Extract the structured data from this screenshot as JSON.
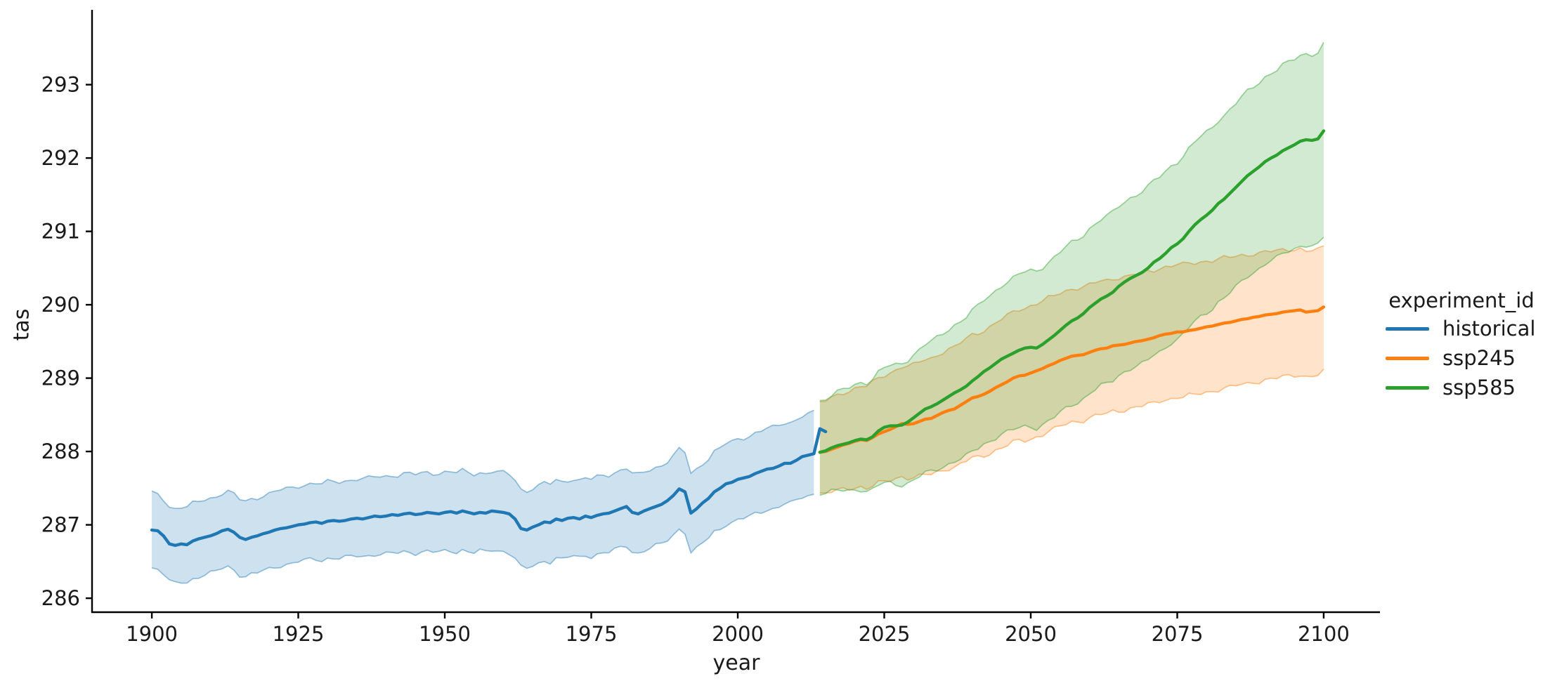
{
  "figure": {
    "background": "#ffffff",
    "text_color": "#1a1a1a"
  },
  "chart_data": {
    "type": "line",
    "title": "",
    "xlabel": "year",
    "ylabel": "tas",
    "grid": false,
    "xlim": [
      1889.8,
      2109.6
    ],
    "ylim": [
      285.81,
      294.02
    ],
    "x_ticks": [
      1900,
      1925,
      1950,
      1975,
      2000,
      2025,
      2050,
      2075,
      2100
    ],
    "y_ticks": [
      286,
      287,
      288,
      289,
      290,
      291,
      292,
      293
    ],
    "legend": {
      "title": "experiment_id",
      "position": "right",
      "items": [
        {
          "label": "historical",
          "color": "#1f77b4"
        },
        {
          "label": "ssp245",
          "color": "#ff7f0e"
        },
        {
          "label": "ssp585",
          "color": "#2ca02c"
        }
      ]
    },
    "series": [
      {
        "name": "historical",
        "color": "#1f77b4",
        "x_start": 1900,
        "x_step": 1,
        "values": [
          286.93,
          286.92,
          286.85,
          286.74,
          286.72,
          286.74,
          286.73,
          286.78,
          286.81,
          286.83,
          286.85,
          286.88,
          286.92,
          286.94,
          286.9,
          286.83,
          286.8,
          286.83,
          286.85,
          286.88,
          286.9,
          286.93,
          286.95,
          286.96,
          286.98,
          287.0,
          287.01,
          287.03,
          287.04,
          287.02,
          287.05,
          287.06,
          287.05,
          287.06,
          287.08,
          287.09,
          287.08,
          287.1,
          287.12,
          287.11,
          287.12,
          287.14,
          287.13,
          287.15,
          287.16,
          287.14,
          287.15,
          287.17,
          287.16,
          287.15,
          287.17,
          287.18,
          287.16,
          287.19,
          287.17,
          287.15,
          287.17,
          287.16,
          287.19,
          287.18,
          287.17,
          287.15,
          287.08,
          286.95,
          286.93,
          286.97,
          287.0,
          287.04,
          287.03,
          287.08,
          287.06,
          287.09,
          287.1,
          287.08,
          287.12,
          287.1,
          287.13,
          287.15,
          287.16,
          287.19,
          287.22,
          287.25,
          287.17,
          287.15,
          287.19,
          287.22,
          287.25,
          287.28,
          287.33,
          287.4,
          287.49,
          287.45,
          287.16,
          287.22,
          287.3,
          287.36,
          287.45,
          287.5,
          287.56,
          287.58,
          287.62,
          287.64,
          287.66,
          287.7,
          287.73,
          287.76,
          287.77,
          287.8,
          287.84,
          287.84,
          287.88,
          287.93,
          287.95,
          287.97,
          288.31,
          288.27
        ],
        "band": {
          "anchor_years": [
            1900,
            1925,
            1950,
            1975,
            2000,
            2013
          ],
          "lower_offset": [
            0.52,
            0.5,
            0.53,
            0.53,
            0.55,
            0.55
          ],
          "upper_offset": [
            0.5,
            0.53,
            0.55,
            0.52,
            0.55,
            0.56
          ],
          "band_end_year": 2013
        }
      },
      {
        "name": "ssp245",
        "color": "#ff7f0e",
        "x_start": 2014,
        "x_step": 1,
        "values": [
          287.99,
          288.0,
          288.03,
          288.06,
          288.09,
          288.11,
          288.14,
          288.16,
          288.15,
          288.19,
          288.24,
          288.27,
          288.3,
          288.34,
          288.38,
          288.37,
          288.38,
          288.41,
          288.44,
          288.45,
          288.49,
          288.53,
          288.56,
          288.58,
          288.63,
          288.68,
          288.73,
          288.75,
          288.78,
          288.82,
          288.87,
          288.91,
          288.95,
          289.0,
          289.03,
          289.04,
          289.07,
          289.1,
          289.13,
          289.17,
          289.2,
          289.24,
          289.27,
          289.3,
          289.31,
          289.32,
          289.35,
          289.38,
          289.4,
          289.41,
          289.44,
          289.45,
          289.46,
          289.48,
          289.5,
          289.51,
          289.53,
          289.55,
          289.58,
          289.6,
          289.61,
          289.63,
          289.63,
          289.65,
          289.66,
          289.68,
          289.7,
          289.71,
          289.73,
          289.75,
          289.76,
          289.78,
          289.8,
          289.81,
          289.83,
          289.84,
          289.86,
          289.87,
          289.88,
          289.9,
          289.91,
          289.92,
          289.93,
          289.9,
          289.91,
          289.92,
          289.97
        ],
        "band": {
          "anchor_years": [
            2014,
            2030,
            2050,
            2075,
            2100
          ],
          "lower_offset": [
            0.56,
            0.74,
            0.9,
            0.89,
            0.88
          ],
          "upper_offset": [
            0.68,
            0.8,
            0.92,
            0.92,
            0.82
          ],
          "band_end_year": 2100
        }
      },
      {
        "name": "ssp585",
        "color": "#2ca02c",
        "x_start": 2014,
        "x_step": 1,
        "values": [
          287.99,
          288.01,
          288.05,
          288.08,
          288.1,
          288.12,
          288.15,
          288.17,
          288.16,
          288.2,
          288.28,
          288.33,
          288.35,
          288.35,
          288.36,
          288.4,
          288.46,
          288.52,
          288.58,
          288.61,
          288.65,
          288.7,
          288.75,
          288.8,
          288.84,
          288.89,
          288.96,
          289.02,
          289.09,
          289.14,
          289.2,
          289.26,
          289.3,
          289.34,
          289.38,
          289.41,
          289.42,
          289.41,
          289.46,
          289.52,
          289.58,
          289.65,
          289.72,
          289.78,
          289.82,
          289.88,
          289.96,
          290.02,
          290.08,
          290.12,
          290.17,
          290.25,
          290.31,
          290.36,
          290.4,
          290.44,
          290.5,
          290.58,
          290.63,
          290.7,
          290.78,
          290.83,
          290.9,
          291.0,
          291.09,
          291.16,
          291.22,
          291.29,
          291.38,
          291.44,
          291.52,
          291.6,
          291.68,
          291.76,
          291.82,
          291.88,
          291.95,
          292.0,
          292.04,
          292.1,
          292.14,
          292.18,
          292.23,
          292.25,
          292.24,
          292.26,
          292.37
        ],
        "band": {
          "anchor_years": [
            2014,
            2030,
            2050,
            2075,
            2100
          ],
          "lower_offset": [
            0.56,
            0.85,
            1.08,
            1.3,
            1.45
          ],
          "upper_offset": [
            0.7,
            0.86,
            1.05,
            1.12,
            1.18
          ],
          "band_end_year": 2100
        }
      }
    ]
  }
}
